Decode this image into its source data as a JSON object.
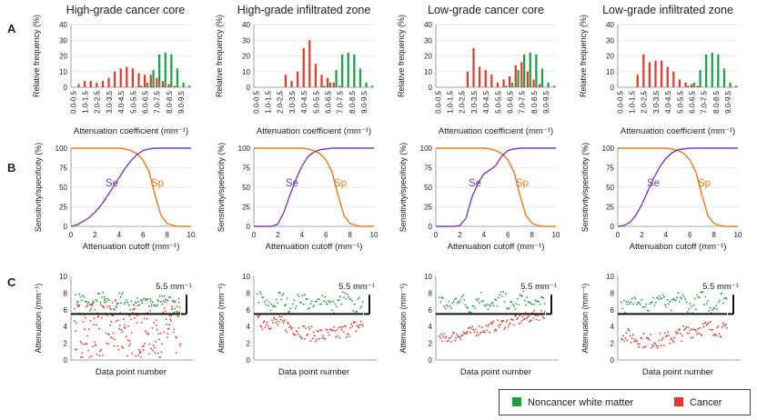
{
  "colors": {
    "noncancer": "#1aa046",
    "cancer": "#e23a2e",
    "sensitivity": "#7b3fb5",
    "specificity": "#f07a1c",
    "threshold_line": "#111111"
  },
  "row_labels": [
    "A",
    "B",
    "C"
  ],
  "panel_titles": [
    "High-grade cancer core",
    "High-grade infiltrated zone",
    "Low-grade cancer core",
    "Low-grade infiltrated zone"
  ],
  "legend": {
    "noncancer": "Noncancer white matter",
    "cancer": "Cancer"
  },
  "threshold_label": "5.5 mm⁻¹",
  "curve_labels": {
    "sensitivity": "Se",
    "specificity": "Sp"
  },
  "chart_data": [
    {
      "type": "bar",
      "row": "A",
      "ylabel": "Relative frequency (%)",
      "xlabel": "Attenuation coefficient (mm⁻¹)",
      "ylim": [
        0,
        40
      ],
      "yticks": [
        0,
        10,
        20,
        30,
        40
      ],
      "categories": [
        "0.0-0.5",
        "1.0-1.5",
        "2.0-2.5",
        "3.0-3.5",
        "4.0-4.5",
        "5.0-5.5",
        "6.0-6.5",
        "7.0-7.5",
        "8.0-8.5",
        "9.0-9.5"
      ],
      "bin_count": 20,
      "noncancer_series": [
        0,
        0,
        0,
        0,
        0,
        0,
        0,
        0,
        0,
        0,
        0,
        1,
        3,
        11,
        21,
        22,
        21,
        12,
        3,
        1
      ],
      "panels": [
        {
          "cancer_series": [
            0,
            2,
            4,
            4,
            3,
            4,
            6,
            10,
            12,
            13,
            12,
            9,
            8,
            8,
            6,
            4,
            2,
            1,
            0,
            0
          ]
        },
        {
          "cancer_series": [
            0,
            0,
            0,
            0,
            0,
            8,
            4,
            10,
            25,
            30,
            15,
            8,
            6,
            3,
            1,
            0,
            0,
            0,
            0,
            0
          ]
        },
        {
          "cancer_series": [
            0,
            0,
            0,
            0,
            0,
            10,
            25,
            13,
            11,
            8,
            3,
            5,
            7,
            14,
            16,
            10,
            5,
            2,
            0,
            0
          ]
        },
        {
          "cancer_series": [
            0,
            0,
            0,
            8,
            21,
            16,
            17,
            17,
            13,
            10,
            5,
            3,
            2,
            1,
            0,
            0,
            0,
            0,
            0,
            0
          ]
        }
      ]
    },
    {
      "type": "line",
      "row": "B",
      "ylabel": "Sensitivity/specificity (%)",
      "xlabel": "Attenuation cutoff (mm⁻¹)",
      "xlim": [
        0,
        10
      ],
      "ylim": [
        0,
        100
      ],
      "xticks": [
        0,
        2,
        4,
        6,
        8,
        10
      ],
      "yticks": [
        0,
        25,
        50,
        75,
        100
      ],
      "x": [
        0,
        0.5,
        1,
        1.5,
        2,
        2.5,
        3,
        3.5,
        4,
        4.5,
        5,
        5.5,
        6,
        6.5,
        7,
        7.5,
        8,
        8.5,
        9,
        9.5,
        10
      ],
      "specificity": [
        100,
        100,
        100,
        100,
        100,
        100,
        100,
        100,
        100,
        99,
        97,
        93,
        85,
        70,
        40,
        14,
        4,
        1,
        0,
        0,
        0
      ],
      "panels": [
        {
          "sensitivity": [
            0,
            2,
            6,
            11,
            18,
            27,
            38,
            50,
            62,
            74,
            84,
            92,
            97,
            99,
            100,
            100,
            100,
            100,
            100,
            100,
            100
          ]
        },
        {
          "sensitivity": [
            0,
            0,
            0,
            0,
            3,
            18,
            40,
            60,
            77,
            89,
            95,
            98,
            99,
            100,
            100,
            100,
            100,
            100,
            100,
            100,
            100
          ]
        },
        {
          "sensitivity": [
            0,
            0,
            0,
            0,
            1,
            10,
            37,
            55,
            67,
            72,
            78,
            90,
            97,
            99,
            100,
            100,
            100,
            100,
            100,
            100,
            100
          ]
        },
        {
          "sensitivity": [
            0,
            1,
            5,
            14,
            28,
            45,
            62,
            76,
            87,
            94,
            98,
            99,
            100,
            100,
            100,
            100,
            100,
            100,
            100,
            100,
            100
          ]
        }
      ]
    },
    {
      "type": "scatter",
      "row": "C",
      "ylabel": "Attenuation (mm⁻¹)",
      "xlabel": "Data point number",
      "ylim": [
        0,
        10
      ],
      "yticks": [
        0,
        2,
        4,
        6,
        8,
        10
      ],
      "threshold": 5.5,
      "noncancer_band": [
        5.5,
        8.3
      ],
      "panels": [
        {
          "cancer_range": [
            0.3,
            7.2
          ],
          "cancer_pattern": "wide"
        },
        {
          "cancer_range": [
            1.5,
            6.0
          ],
          "cancer_pattern": "band"
        },
        {
          "cancer_range": [
            1.8,
            6.5
          ],
          "cancer_pattern": "rising"
        },
        {
          "cancer_range": [
            0.8,
            5.3
          ],
          "cancer_pattern": "band"
        }
      ]
    }
  ]
}
